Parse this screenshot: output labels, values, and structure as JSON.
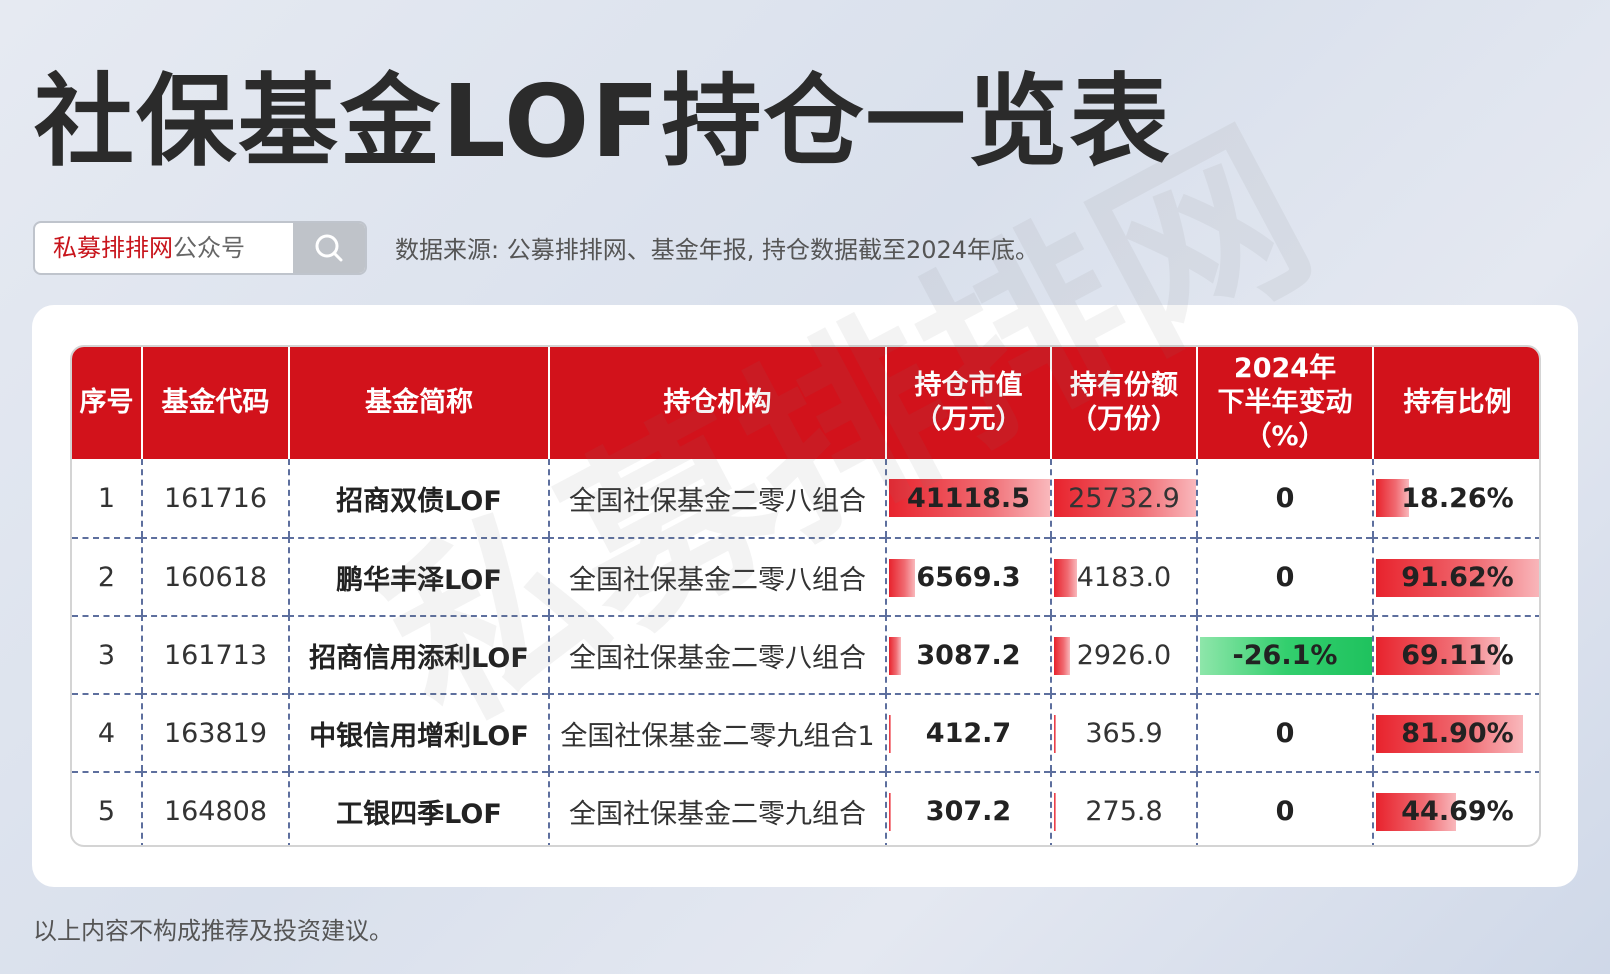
{
  "header": {
    "title": "社保基金LOF持仓一览表",
    "search_brand": "私募排排网",
    "search_suffix": "公众号",
    "source": "数据来源: 公募排排网、基金年报, 持仓数据截至2024年底。"
  },
  "table": {
    "columns": [
      "序号",
      "基金代码",
      "基金简称",
      "持仓机构",
      "持仓市值\n（万元）",
      "持有份额\n（万份）",
      "2024年\n下半年变动\n（%）",
      "持有比例"
    ],
    "rows": [
      [
        "1",
        "161716",
        "招商双债LOF",
        "全国社保基金二零八组合",
        "41118.5",
        "25732.9",
        "0",
        "18.26%"
      ],
      [
        "2",
        "160618",
        "鹏华丰泽LOF",
        "全国社保基金二零八组合",
        "6569.3",
        "4183.0",
        "0",
        "91.62%"
      ],
      [
        "3",
        "161713",
        "招商信用添利LOF",
        "全国社保基金二零八组合",
        "3087.2",
        "2926.0",
        "-26.1%",
        "69.11%"
      ],
      [
        "4",
        "163819",
        "中银信用增利LOF",
        "全国社保基金二零九组合1",
        "412.7",
        "365.9",
        "0",
        "81.90%"
      ],
      [
        "5",
        "164808",
        "工银四季LOF",
        "全国社保基金二零九组合",
        "307.2",
        "275.8",
        "0",
        "44.69%"
      ]
    ]
  },
  "watermark": "私募排排网",
  "footer": "以上内容不构成推荐及投资建议。"
}
